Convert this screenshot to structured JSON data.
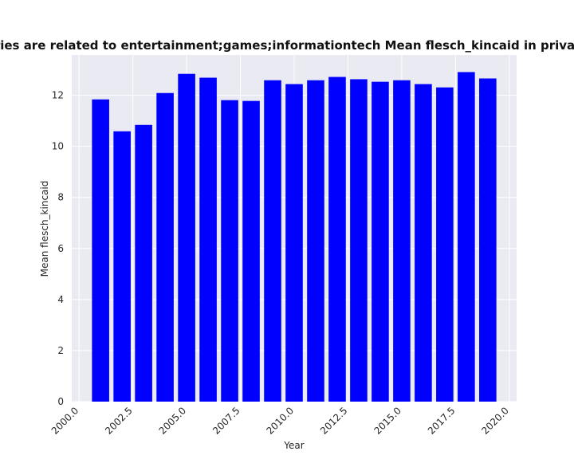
{
  "chart_data": {
    "type": "bar",
    "title": "egories are related to entertainment;games;informationtech Mean flesch_kincaid in privacy poli",
    "x_label": "Year",
    "y_label": "Mean flesch_kincaid",
    "x": [
      2001,
      2002,
      2003,
      2004,
      2005,
      2006,
      2007,
      2008,
      2009,
      2010,
      2011,
      2012,
      2013,
      2014,
      2015,
      2016,
      2017,
      2018,
      2019
    ],
    "values": [
      11.84,
      10.59,
      10.84,
      12.09,
      12.84,
      12.69,
      11.81,
      11.78,
      12.59,
      12.44,
      12.59,
      12.72,
      12.63,
      12.53,
      12.59,
      12.44,
      12.31,
      12.91,
      12.66
    ],
    "color": "#0000ff",
    "xlim": [
      1999.66,
      2020.34
    ],
    "xticks": [
      {
        "value": 2000,
        "label": "2000.0"
      },
      {
        "value": 2002.5,
        "label": "2002.5"
      },
      {
        "value": 2005,
        "label": "2005.0"
      },
      {
        "value": 2007.5,
        "label": "2007.5"
      },
      {
        "value": 2010,
        "label": "2010.0"
      },
      {
        "value": 2012.5,
        "label": "2012.5"
      },
      {
        "value": 2015,
        "label": "2015.0"
      },
      {
        "value": 2017.5,
        "label": "2017.5"
      },
      {
        "value": 2020,
        "label": "2020.0"
      }
    ],
    "ylim": [
      0,
      13.58
    ],
    "yticks": [
      0,
      2,
      4,
      6,
      8,
      10,
      12
    ],
    "grid": true
  }
}
